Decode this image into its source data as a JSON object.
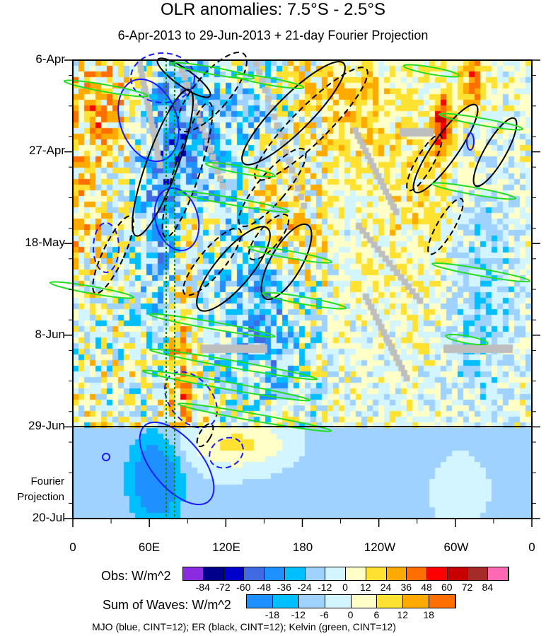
{
  "chart_data": {
    "type": "heatmap",
    "title": "OLR anomalies: 7.5°S - 2.5°S",
    "subtitle": "6-Apr-2013 to 29-Jun-2013 + 21-day Fourier Projection",
    "x_ticks": [
      "0",
      "60E",
      "120E",
      "180",
      "120W",
      "60W",
      "0"
    ],
    "y_ticks": [
      "6-Apr",
      "27-Apr",
      "18-May",
      "8-Jun",
      "29-Jun",
      "20-Jul"
    ],
    "projection_label": [
      "Fourier",
      "Projection"
    ],
    "obs_colorbar": {
      "label": "Obs: W/m^2",
      "levels": [
        "-84",
        "-72",
        "-60",
        "-48",
        "-36",
        "-24",
        "-12",
        "0",
        "12",
        "24",
        "36",
        "48",
        "60",
        "72",
        "84"
      ],
      "colors": [
        "#8a2be2",
        "#00008b",
        "#0000cd",
        "#4169e1",
        "#1e90ff",
        "#00bfff",
        "#a0d2ff",
        "#d2f5ff",
        "#ffffc8",
        "#ffe132",
        "#ffaa00",
        "#ff6e00",
        "#ff0000",
        "#c80000",
        "#a52a2a",
        "#ff69b4"
      ]
    },
    "waves_colorbar": {
      "label": "Sum of Waves: W/m^2",
      "levels": [
        "-18",
        "-12",
        "-6",
        "0",
        "6",
        "12",
        "18"
      ],
      "colors": [
        "#1e90ff",
        "#00bfff",
        "#a0d2ff",
        "#d2f5ff",
        "#ffffc8",
        "#ffe132",
        "#ffaa00",
        "#ff6e00"
      ]
    },
    "legend_note": "MJO (blue, CINT=12); ER (black, CINT=12); Kelvin (green, CINT=12)",
    "x_range_deg": [
      0,
      360
    ],
    "y_range_days": [
      0,
      105
    ],
    "projection_start_day": 84
  }
}
